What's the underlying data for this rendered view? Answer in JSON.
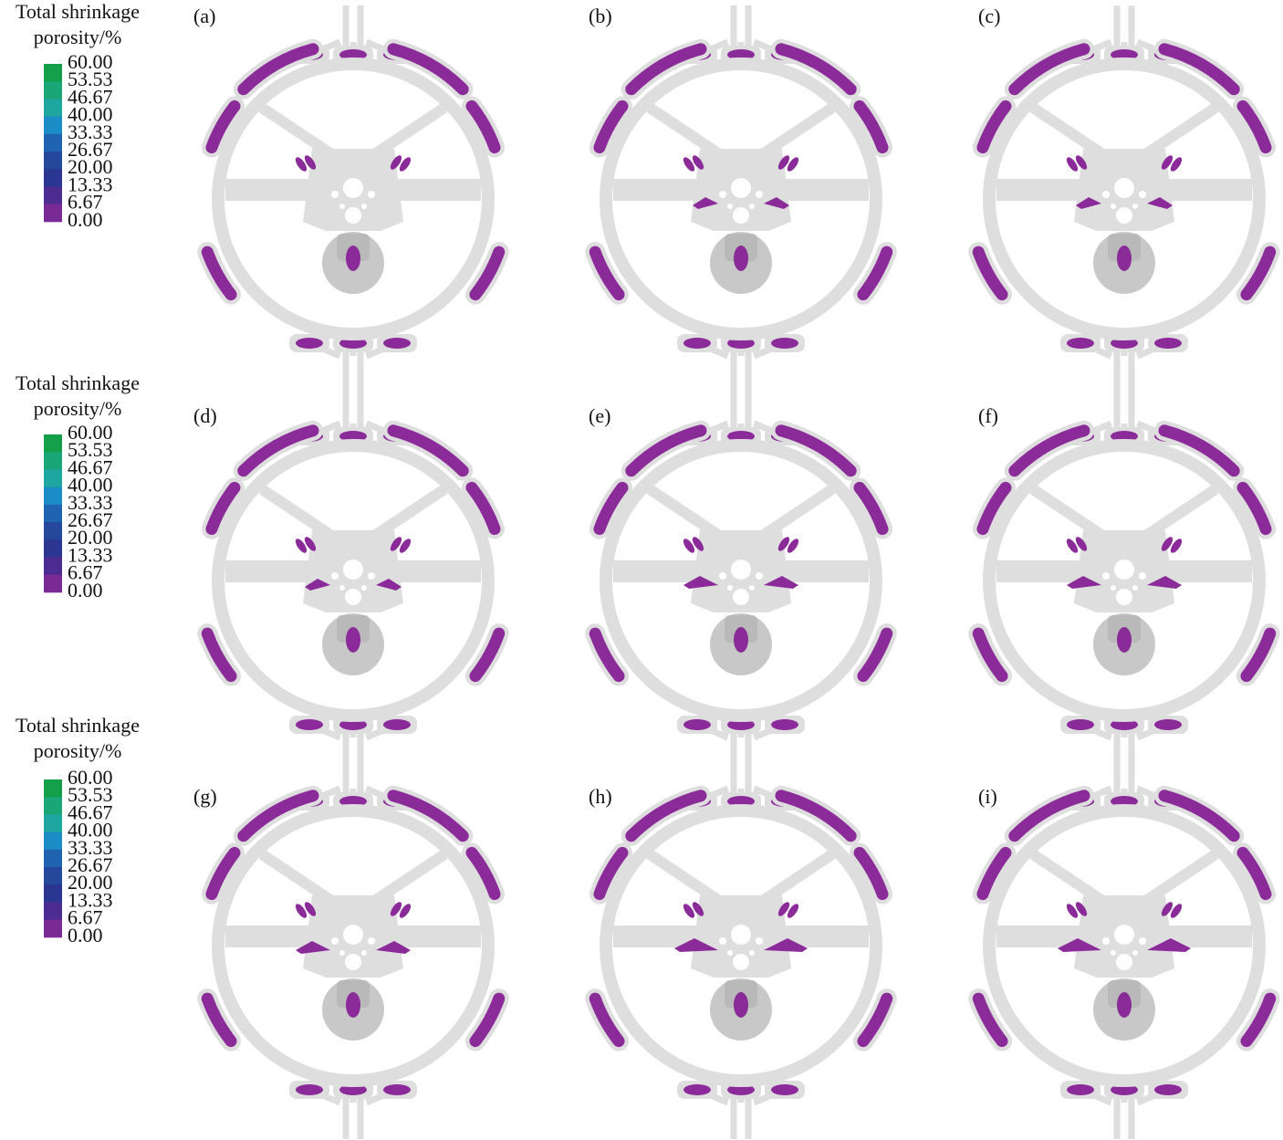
{
  "legends": [
    {
      "title": [
        "Total shrinkage",
        "porosity/%"
      ],
      "labels": [
        "60.00",
        "53.53",
        "46.67",
        "40.00",
        "33.33",
        "26.67",
        "20.00",
        "13.33",
        "6.67",
        "0.00"
      ]
    },
    {
      "title": [
        "Total shrinkage",
        "porosity/%"
      ],
      "labels": [
        "60.00",
        "53.53",
        "46.67",
        "40.00",
        "33.33",
        "26.67",
        "20.00",
        "13.33",
        "6.67",
        "0.00"
      ]
    },
    {
      "title": [
        "Total shrinkage",
        "porosity/%"
      ],
      "labels": [
        "60.00",
        "53.53",
        "46.67",
        "40.00",
        "33.33",
        "26.67",
        "20.00",
        "13.33",
        "6.67",
        "0.00"
      ]
    }
  ],
  "panels": [
    {
      "label": "(a)"
    },
    {
      "label": "(b)"
    },
    {
      "label": "(c)"
    },
    {
      "label": "(d)"
    },
    {
      "label": "(e)"
    },
    {
      "label": "(f)"
    },
    {
      "label": "(g)"
    },
    {
      "label": "(h)"
    },
    {
      "label": "(i)"
    }
  ]
}
